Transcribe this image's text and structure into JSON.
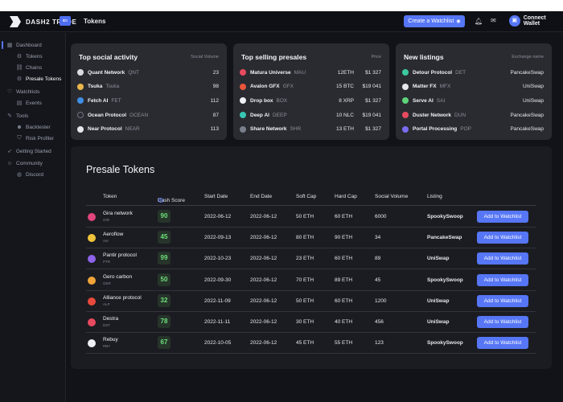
{
  "app": {
    "logo_text": "DASH2 TRADE",
    "page_title": "Tokens"
  },
  "header": {
    "create_watchlist": "Create a Watchlist",
    "connect_wallet": "Connect Wallet"
  },
  "sidebar": {
    "items": [
      {
        "label": "Dashboard",
        "icon": "grid-icon"
      },
      {
        "label": "Tokens",
        "icon": "coins-icon"
      },
      {
        "label": "Chains",
        "icon": "link-icon"
      },
      {
        "label": "Presale Tokens",
        "icon": "gear-icon"
      },
      {
        "label": "Watchlists",
        "icon": "heart-icon"
      },
      {
        "label": "Events",
        "icon": "calendar-icon"
      },
      {
        "label": "Tools",
        "icon": "wrench-icon"
      },
      {
        "label": "Backtester",
        "icon": "user-icon"
      },
      {
        "label": "Risk Profiler",
        "icon": "shield-icon"
      },
      {
        "label": "Getting Started",
        "icon": "rocket-icon"
      },
      {
        "label": "Community",
        "icon": "people-icon"
      },
      {
        "label": "Discord",
        "icon": "discord-icon"
      }
    ]
  },
  "social": {
    "title": "Top social activity",
    "column": "Social Volume",
    "rows": [
      {
        "name": "Quant Network",
        "sym": "QNT",
        "value": "23",
        "color": "#d9dbe2"
      },
      {
        "name": "Tsuka",
        "sym": "Tsuka",
        "value": "98",
        "color": "#e8b64b"
      },
      {
        "name": "Fetch AI",
        "sym": "FET",
        "value": "112",
        "color": "#3f8fe6"
      },
      {
        "name": "Ocean Protocol",
        "sym": "OCEAN",
        "value": "87",
        "color": "#2a2b30"
      },
      {
        "name": "Near Protocol",
        "sym": "NEAR",
        "value": "113",
        "color": "#e6e8ee"
      }
    ]
  },
  "selling": {
    "title": "Top selling presales",
    "column": "Price",
    "rows": [
      {
        "name": "Matura Universe",
        "sym": "MAU",
        "amount": "12ETH",
        "price": "$1 327",
        "color": "#e84a5f"
      },
      {
        "name": "Avalon GFX",
        "sym": "GFX",
        "amount": "15 BTC",
        "price": "$19 041",
        "color": "#e9553d"
      },
      {
        "name": "Drop box",
        "sym": "BOX",
        "amount": "8 XRP",
        "price": "$1 327",
        "color": "#eef0f5"
      },
      {
        "name": "Deep AI",
        "sym": "DEEP",
        "amount": "10 NLC",
        "price": "$19 041",
        "color": "#38c6b3"
      },
      {
        "name": "Share Network",
        "sym": "SHR",
        "amount": "13 ETH",
        "price": "$1 327",
        "color": "#7a7f8c"
      }
    ]
  },
  "listings": {
    "title": "New listings",
    "column": "Exchange name",
    "rows": [
      {
        "name": "Detour Protocol",
        "sym": "DET",
        "exchange": "PancakeSwap",
        "color": "#3bc9a0"
      },
      {
        "name": "Matter FX",
        "sym": "MFX",
        "exchange": "UniSwap",
        "color": "#e6e8ee"
      },
      {
        "name": "Serve AI",
        "sym": "SAI",
        "exchange": "UniSwap",
        "color": "#5fd37a"
      },
      {
        "name": "Duster Network",
        "sym": "DUN",
        "exchange": "PancakeSwap",
        "color": "#e84a5f"
      },
      {
        "name": "Portal Processing",
        "sym": "POP",
        "exchange": "PancakeSwap",
        "color": "#7a6cf0"
      }
    ]
  },
  "presale": {
    "title": "Presale Tokens",
    "headers": {
      "token": "Token",
      "score": "Dash Score",
      "start": "Start Date",
      "end": "End Date",
      "soft": "Soft Cap",
      "hard": "Hard Cap",
      "social": "Social Volume",
      "listing": "Listing"
    },
    "button_label": "Add to Watchlist",
    "rows": [
      {
        "name": "Gira network",
        "sym": "GIR",
        "score": "90",
        "start": "2022-06-12",
        "end": "2022-06-12",
        "soft": "50 ETH",
        "hard": "60 ETH",
        "social": "6000",
        "listing": "SpookySwoop",
        "color": "#e0457b"
      },
      {
        "name": "Aeroflow",
        "sym": "Aer",
        "score": "45",
        "start": "2022-09-13",
        "end": "2022-06-12",
        "soft": "80 ETH",
        "hard": "90 ETH",
        "social": "34",
        "listing": "PancakeSwap",
        "color": "#f0c43a"
      },
      {
        "name": "Pantir protocol",
        "sym": "PTR",
        "score": "99",
        "start": "2022-10-23",
        "end": "2022-06-12",
        "soft": "23 ETH",
        "hard": "60 ETH",
        "social": "89",
        "listing": "UniSwap",
        "color": "#8d63e8"
      },
      {
        "name": "Gero carbon",
        "sym": "GER",
        "score": "50",
        "start": "2022-09-30",
        "end": "2022-06-12",
        "soft": "70 ETH",
        "hard": "89 ETH",
        "social": "45",
        "listing": "SpookySwoop",
        "color": "#f0a43a"
      },
      {
        "name": "Alliance protocol",
        "sym": "ALP",
        "score": "32",
        "start": "2022-11-09",
        "end": "2022-06-12",
        "soft": "50 ETH",
        "hard": "60 ETH",
        "social": "1200",
        "listing": "UniSwap",
        "color": "#e84a3d"
      },
      {
        "name": "Destra",
        "sym": "DST",
        "score": "78",
        "start": "2022-11-11",
        "end": "2022-06-12",
        "soft": "30 ETH",
        "hard": "40 ETH",
        "social": "456",
        "listing": "UniSwap",
        "color": "#e84a5f"
      },
      {
        "name": "Rebuy",
        "sym": "RBY",
        "score": "67",
        "start": "2022-10-05",
        "end": "2022-06-12",
        "soft": "45 ETH",
        "hard": "55 ETH",
        "social": "123",
        "listing": "SpookySwoop",
        "color": "#eef0f5"
      }
    ]
  }
}
